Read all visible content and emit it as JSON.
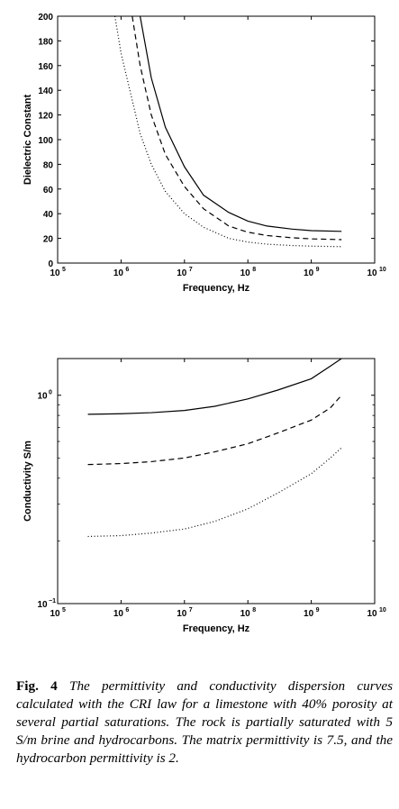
{
  "chart_data": [
    {
      "type": "line",
      "xscale": "log",
      "yscale": "linear",
      "xlim": [
        100000,
        10000000000
      ],
      "ylim": [
        0,
        200
      ],
      "xlabel": "Frequency, Hz",
      "ylabel": "Dielectric Constant",
      "xticks": [
        {
          "base": "10",
          "exp": "5"
        },
        {
          "base": "10",
          "exp": "6"
        },
        {
          "base": "10",
          "exp": "7"
        },
        {
          "base": "10",
          "exp": "8"
        },
        {
          "base": "10",
          "exp": "9"
        },
        {
          "base": "10",
          "exp": "10"
        }
      ],
      "yticks": [
        "0",
        "20",
        "40",
        "60",
        "80",
        "100",
        "120",
        "140",
        "160",
        "180",
        "200"
      ],
      "series": [
        {
          "style": "solid",
          "x": [
            2000000,
            3000000,
            5000000,
            10000000,
            20000000,
            50000000,
            100000000,
            200000000,
            500000000,
            1000000000,
            3000000000
          ],
          "values": [
            200,
            150,
            110,
            78,
            55,
            41,
            34,
            30,
            27.5,
            26.3,
            25.7
          ]
        },
        {
          "style": "dashed",
          "x": [
            1500000,
            2000000,
            3000000,
            5000000,
            10000000,
            20000000,
            50000000,
            100000000,
            200000000,
            500000000,
            1000000000,
            3000000000
          ],
          "values": [
            200,
            160,
            120,
            88,
            62,
            44,
            30,
            25,
            22.3,
            20.5,
            19.6,
            19
          ]
        },
        {
          "style": "dotted",
          "x": [
            800000,
            1000000,
            2000000,
            3000000,
            5000000,
            10000000,
            20000000,
            50000000,
            100000000,
            200000000,
            500000000,
            1000000000,
            3000000000
          ],
          "values": [
            200,
            170,
            105,
            80,
            58,
            40,
            29,
            20,
            17,
            15.3,
            14.2,
            13.7,
            13.3
          ]
        }
      ]
    },
    {
      "type": "line",
      "xscale": "log",
      "yscale": "log",
      "xlim": [
        100000,
        10000000000
      ],
      "ylim": [
        0.1,
        1.5
      ],
      "xlabel": "Frequency, Hz",
      "ylabel": "Conductivity S/m",
      "xticks": [
        {
          "base": "10",
          "exp": "5"
        },
        {
          "base": "10",
          "exp": "6"
        },
        {
          "base": "10",
          "exp": "7"
        },
        {
          "base": "10",
          "exp": "8"
        },
        {
          "base": "10",
          "exp": "9"
        },
        {
          "base": "10",
          "exp": "10"
        }
      ],
      "yticks": [
        {
          "value": 0.1,
          "base": "10",
          "exp": "−1"
        },
        {
          "value": 1,
          "base": "10",
          "exp": "0"
        }
      ],
      "series": [
        {
          "style": "solid",
          "x": [
            300000,
            1000000,
            3000000,
            10000000,
            30000000,
            100000000,
            300000000,
            1000000000,
            2000000000,
            3000000000
          ],
          "values": [
            0.81,
            0.815,
            0.825,
            0.845,
            0.885,
            0.96,
            1.06,
            1.2,
            1.38,
            1.5
          ]
        },
        {
          "style": "dashed",
          "x": [
            300000,
            1000000,
            3000000,
            10000000,
            30000000,
            100000000,
            300000000,
            1000000000,
            2000000000,
            3000000000
          ],
          "values": [
            0.465,
            0.47,
            0.48,
            0.5,
            0.535,
            0.585,
            0.66,
            0.76,
            0.87,
            1.0
          ]
        },
        {
          "style": "dotted",
          "x": [
            300000,
            1000000,
            3000000,
            10000000,
            30000000,
            100000000,
            300000000,
            1000000000,
            2000000000,
            3000000000
          ],
          "values": [
            0.21,
            0.212,
            0.218,
            0.228,
            0.248,
            0.285,
            0.34,
            0.42,
            0.5,
            0.56
          ]
        }
      ]
    }
  ],
  "caption": {
    "fig_number": "Fig. 4",
    "text": "The permittivity and conductivity dispersion curves calculated with the CRI law for a limestone with 40% porosity at several partial saturations. The rock is partially saturated with 5 S/m brine and hydrocarbons. The matrix permittivity is 7.5, and the hydrocarbon permittivity is 2."
  }
}
